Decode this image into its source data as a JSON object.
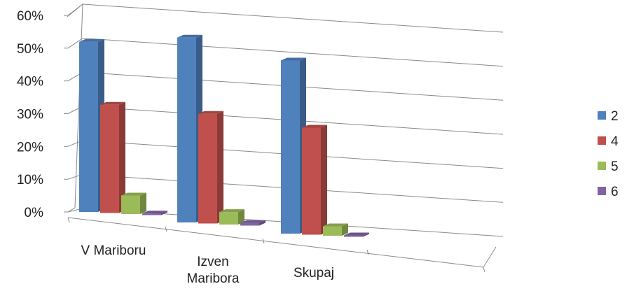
{
  "chart_data": {
    "type": "bar",
    "title": "",
    "xlabel": "",
    "ylabel": "",
    "categories": [
      "V Mariboru",
      "Izven Maribora",
      "Skupaj"
    ],
    "category_lines": [
      [
        "V Mariboru"
      ],
      [
        "Izven",
        "Maribora"
      ],
      [
        "Skupaj"
      ]
    ],
    "yticks": [
      "0%",
      "10%",
      "20%",
      "30%",
      "40%",
      "50%",
      "60%"
    ],
    "ylim": [
      0,
      60
    ],
    "series": [
      {
        "name": "2",
        "values": [
          55,
          59,
          55
        ],
        "color": "#4F81BD"
      },
      {
        "name": "4",
        "values": [
          35,
          35,
          34
        ],
        "color": "#C0504D"
      },
      {
        "name": "5",
        "values": [
          6,
          4,
          3
        ],
        "color": "#9BBB59"
      },
      {
        "name": "6",
        "values": [
          0.5,
          0.8,
          0.3
        ],
        "color": "#8064A2"
      }
    ],
    "grid": true,
    "legend_position": "right",
    "style": "3d-clustered-column"
  }
}
